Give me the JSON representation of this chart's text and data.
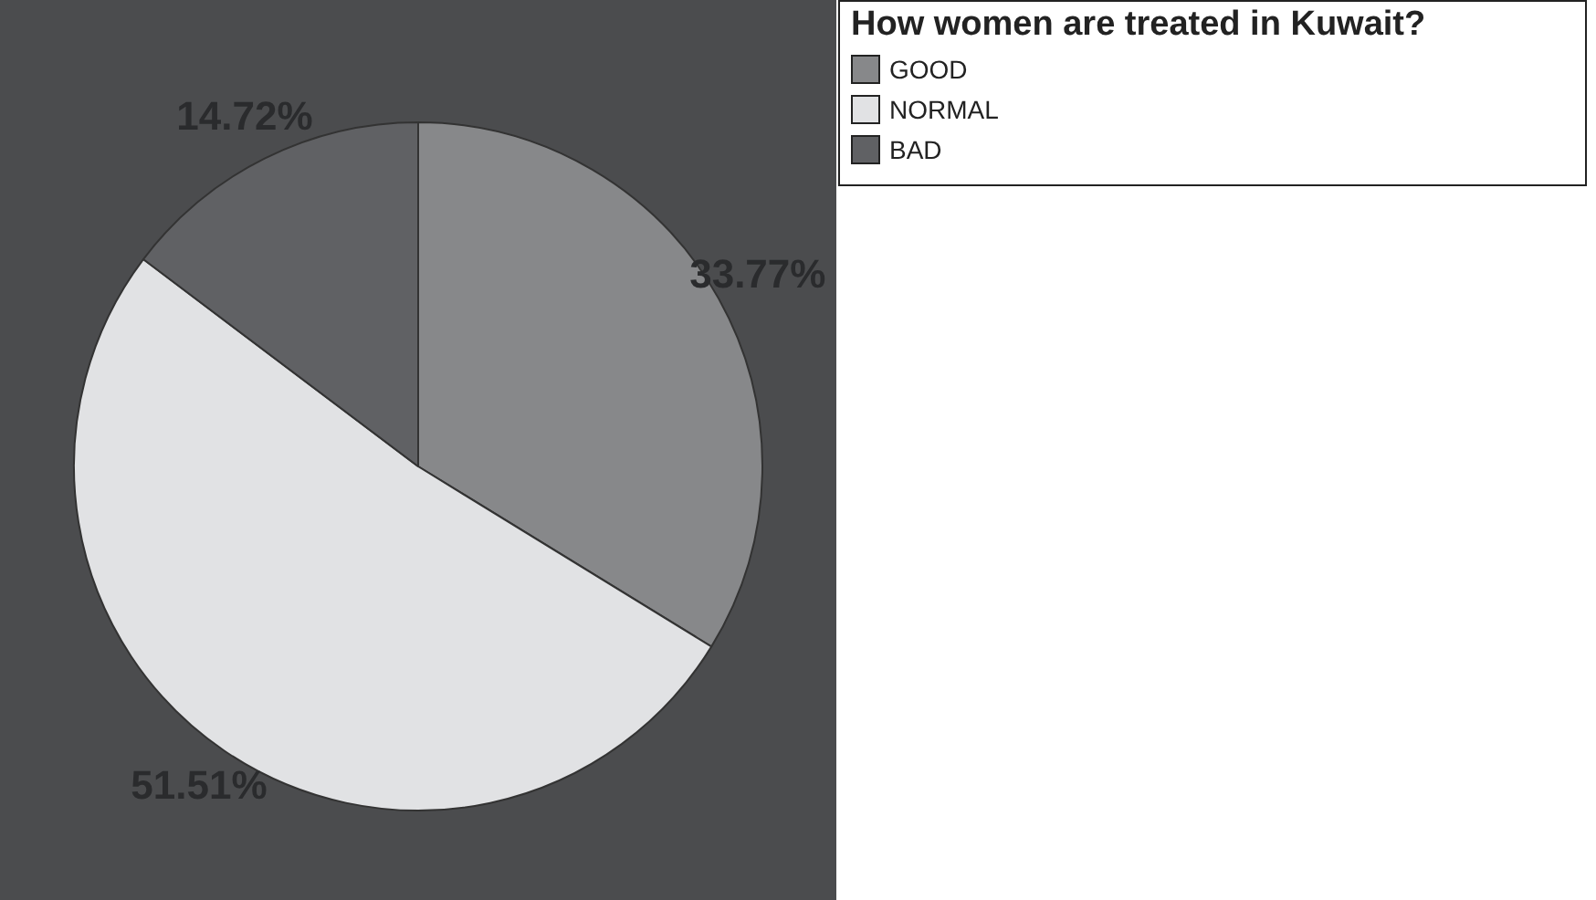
{
  "chart_data": {
    "type": "pie",
    "legend_title": "How women are treated in Kuwait?",
    "categories": [
      "GOOD",
      "NORMAL",
      "BAD"
    ],
    "values": [
      33.77,
      51.51,
      14.72
    ],
    "colors": [
      "#87888a",
      "#e1e2e4",
      "#606164"
    ],
    "value_labels": [
      "33.77%",
      "51.51%",
      "14.72%"
    ],
    "legend": "top right"
  }
}
